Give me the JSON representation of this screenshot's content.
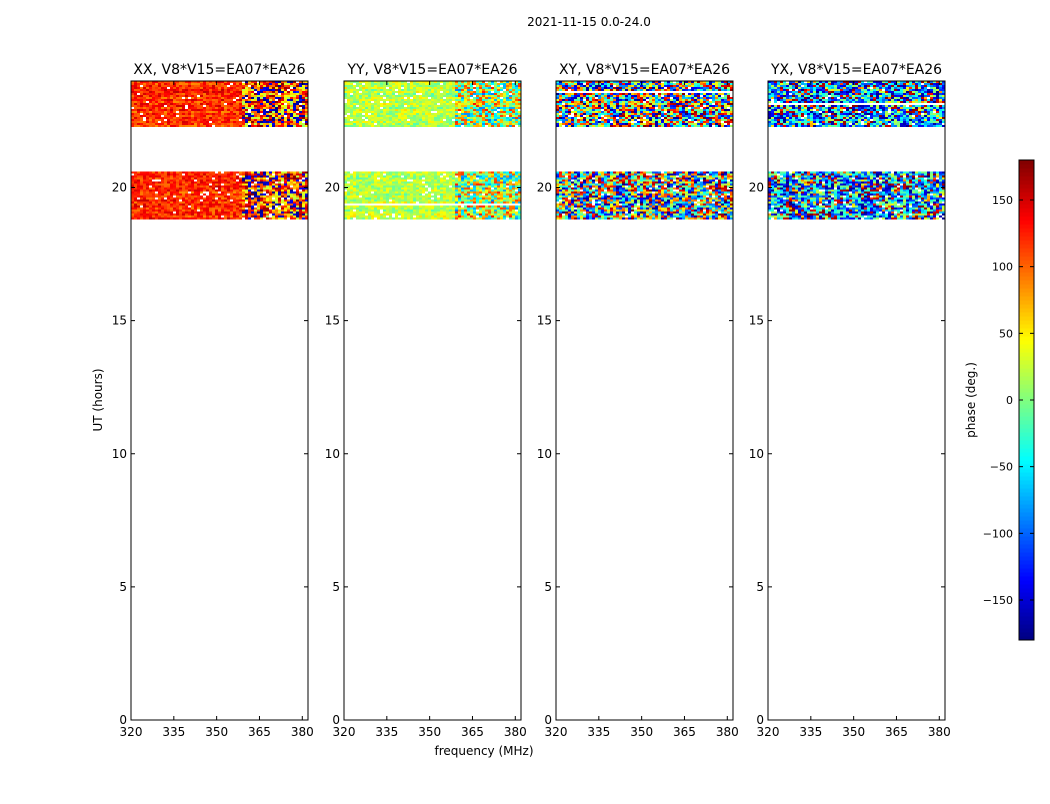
{
  "figure": {
    "suptitle": "2021-11-15 0.0-24.0",
    "shared_xlabel": "frequency (MHz)",
    "shared_ylabel": "UT (hours)",
    "colorbar_label": "phase (deg.)"
  },
  "chart_data": [
    {
      "type": "heatmap",
      "title": "XX, V8*V15=EA07*EA26",
      "xlim": [
        320,
        382
      ],
      "ylim": [
        0,
        24
      ],
      "xticks": [
        320,
        335,
        350,
        365,
        380
      ],
      "yticks": [
        0,
        5,
        10,
        15,
        20
      ],
      "data_bands_ut": [
        [
          18.8,
          20.6
        ],
        [
          22.3,
          24.0
        ]
      ],
      "pattern": "coherent",
      "phase_mean": 120,
      "phase_spread": 30,
      "colormap": "jet"
    },
    {
      "type": "heatmap",
      "title": "YY, V8*V15=EA07*EA26",
      "xlim": [
        320,
        382
      ],
      "ylim": [
        0,
        24
      ],
      "xticks": [
        320,
        335,
        350,
        365,
        380
      ],
      "yticks": [
        0,
        5,
        10,
        15,
        20
      ],
      "data_bands_ut": [
        [
          18.8,
          20.6
        ],
        [
          22.3,
          24.0
        ]
      ],
      "pattern": "coherent",
      "phase_mean": 20,
      "phase_spread": 30,
      "colormap": "jet"
    },
    {
      "type": "heatmap",
      "title": "XY, V8*V15=EA07*EA26",
      "xlim": [
        320,
        382
      ],
      "ylim": [
        0,
        24
      ],
      "xticks": [
        320,
        335,
        350,
        365,
        380
      ],
      "yticks": [
        0,
        5,
        10,
        15,
        20
      ],
      "data_bands_ut": [
        [
          18.8,
          20.6
        ],
        [
          22.3,
          24.0
        ]
      ],
      "pattern": "noise",
      "phase_mean": 0,
      "phase_spread": 180,
      "colormap": "jet"
    },
    {
      "type": "heatmap",
      "title": "YX, V8*V15=EA07*EA26",
      "xlim": [
        320,
        382
      ],
      "ylim": [
        0,
        24
      ],
      "xticks": [
        320,
        335,
        350,
        365,
        380
      ],
      "yticks": [
        0,
        5,
        10,
        15,
        20
      ],
      "data_bands_ut": [
        [
          18.8,
          20.6
        ],
        [
          22.3,
          24.0
        ]
      ],
      "pattern": "noise",
      "phase_mean": -90,
      "phase_spread": 120,
      "colormap": "jet"
    }
  ],
  "colorbar": {
    "colormap": "jet",
    "range": [
      -180,
      180
    ],
    "ticks": [
      -150,
      -100,
      -50,
      0,
      50,
      100,
      150
    ],
    "tick_labels": [
      "−150",
      "−100",
      "−50",
      "0",
      "50",
      "100",
      "150"
    ]
  }
}
